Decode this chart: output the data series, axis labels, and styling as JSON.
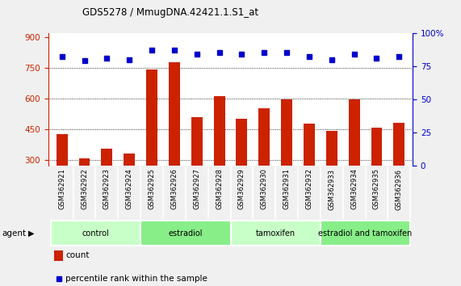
{
  "title": "GDS5278 / MmugDNA.42421.1.S1_at",
  "samples": [
    "GSM362921",
    "GSM362922",
    "GSM362923",
    "GSM362924",
    "GSM362925",
    "GSM362926",
    "GSM362927",
    "GSM362928",
    "GSM362929",
    "GSM362930",
    "GSM362931",
    "GSM362932",
    "GSM362933",
    "GSM362934",
    "GSM362935",
    "GSM362936"
  ],
  "counts": [
    425,
    305,
    355,
    330,
    740,
    775,
    510,
    610,
    500,
    550,
    595,
    475,
    440,
    595,
    455,
    480
  ],
  "percentile_ranks": [
    82,
    79,
    81,
    80,
    87,
    87,
    84,
    85,
    84,
    85,
    85,
    82,
    80,
    84,
    81,
    82
  ],
  "groups": [
    {
      "label": "control",
      "start": 0,
      "end": 3,
      "color": "#c8ffc8"
    },
    {
      "label": "estradiol",
      "start": 4,
      "end": 7,
      "color": "#88ee88"
    },
    {
      "label": "tamoxifen",
      "start": 8,
      "end": 11,
      "color": "#c8ffc8"
    },
    {
      "label": "estradiol and tamoxifen",
      "start": 12,
      "end": 15,
      "color": "#88ee88"
    }
  ],
  "bar_color": "#cc2200",
  "dot_color": "#0000cc",
  "ylim_left": [
    270,
    920
  ],
  "ylim_right": [
    0,
    100
  ],
  "yticks_left": [
    300,
    450,
    600,
    750,
    900
  ],
  "yticks_right": [
    0,
    25,
    50,
    75,
    100
  ],
  "grid_values": [
    300,
    450,
    600,
    750
  ],
  "fig_bg": "#f0f0f0",
  "plot_bg": "#ffffff",
  "xtick_bg": "#c8c8c8",
  "legend_count": "count",
  "legend_pct": "percentile rank within the sample",
  "agent_text": "agent",
  "bar_width": 0.5
}
